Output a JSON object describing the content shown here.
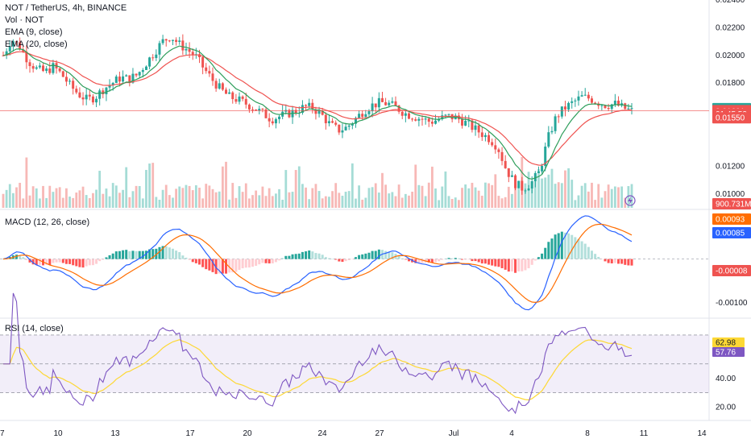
{
  "chart_data": {
    "type": "candlestick",
    "title": "NOT / TetherUS, 4h, BINANCE",
    "price_pane": {
      "legend": [
        "Vol · NOT",
        "EMA (9, close)",
        "EMA (20, close)"
      ],
      "y_ticks": [
        "0.02400",
        "0.02200",
        "0.02000",
        "0.01800",
        "0.01200",
        "0.01000"
      ],
      "ylim": [
        0.009,
        0.024
      ],
      "close_series": [
        0.02,
        0.0212,
        0.0206,
        0.0196,
        0.019,
        0.0188,
        0.0192,
        0.0186,
        0.0178,
        0.0172,
        0.0168,
        0.017,
        0.0176,
        0.018,
        0.0184,
        0.0183,
        0.0186,
        0.0194,
        0.0202,
        0.021,
        0.0214,
        0.0208,
        0.0204,
        0.0199,
        0.019,
        0.0182,
        0.0175,
        0.017,
        0.0168,
        0.0165,
        0.0162,
        0.0158,
        0.0154,
        0.0156,
        0.0158,
        0.016,
        0.0163,
        0.0162,
        0.0157,
        0.015,
        0.0146,
        0.0148,
        0.0154,
        0.016,
        0.0164,
        0.0166,
        0.0165,
        0.0162,
        0.0158,
        0.0156,
        0.0154,
        0.0152,
        0.0154,
        0.0156,
        0.0155,
        0.0152,
        0.0148,
        0.0144,
        0.014,
        0.0134,
        0.0118,
        0.0108,
        0.0104,
        0.0108,
        0.0116,
        0.014,
        0.0156,
        0.0162,
        0.0166,
        0.017,
        0.0169,
        0.0166,
        0.0164,
        0.0165,
        0.0162,
        0.016
      ],
      "badges": [
        {
          "label": "0.01616",
          "value": 0.01616,
          "color": "#26a69a"
        },
        {
          "label": "0.01601",
          "value": 0.01601,
          "color": "#ef5350"
        },
        {
          "label": "01:45:53",
          "value": 0.01578,
          "color": "#ef5350"
        },
        {
          "label": "0.01550",
          "value": 0.0155,
          "color": "#ef5350"
        }
      ],
      "current_line": 0.01601
    },
    "volume": {
      "badge": "900.731M",
      "badge_color": "#ef5350"
    },
    "macd_pane": {
      "legend": "MACD (12, 26, close)",
      "y_ticks": [
        "-0.00100"
      ],
      "ylim": [
        -0.0013,
        0.0011
      ],
      "badges": [
        {
          "label": "0.00093",
          "value": 0.00093,
          "color": "#ff6d00"
        },
        {
          "label": "0.00085",
          "value": 0.00085,
          "color": "#2962ff"
        },
        {
          "label": "-0.00008",
          "value": -8e-05,
          "color": "#ef5350"
        }
      ]
    },
    "rsi_pane": {
      "legend": "RSI (14, close)",
      "y_ticks": [
        "40.00",
        "20.00"
      ],
      "ylim": [
        12,
        80
      ],
      "upper": 70,
      "lower": 30,
      "middle": 50,
      "badges": [
        {
          "label": "62.98",
          "value": 62.98,
          "color": "#fdd835",
          "text_color": "#131722"
        },
        {
          "label": "57.76",
          "value": 57.76,
          "color": "#7e57c2",
          "text_color": "#ffffff"
        }
      ]
    },
    "x_ticks": [
      {
        "label": "7",
        "x": 0
      },
      {
        "label": "10",
        "x": 72
      },
      {
        "label": "13",
        "x": 143
      },
      {
        "label": "17",
        "x": 236
      },
      {
        "label": "20",
        "x": 307
      },
      {
        "label": "24",
        "x": 400
      },
      {
        "label": "27",
        "x": 471
      },
      {
        "label": "Jul",
        "x": 563
      },
      {
        "label": "4",
        "x": 635
      },
      {
        "label": "8",
        "x": 729
      },
      {
        "label": "11",
        "x": 799
      },
      {
        "label": "14",
        "x": 871
      }
    ],
    "colors": {
      "up": "#26a69a",
      "down": "#ef5350",
      "ema9": "#2e9e5b",
      "ema20": "#ef5350",
      "macd": "#2962ff",
      "signal": "#ff6d00",
      "rsi": "#7e57c2",
      "rsi_ma": "#fdd835"
    }
  }
}
